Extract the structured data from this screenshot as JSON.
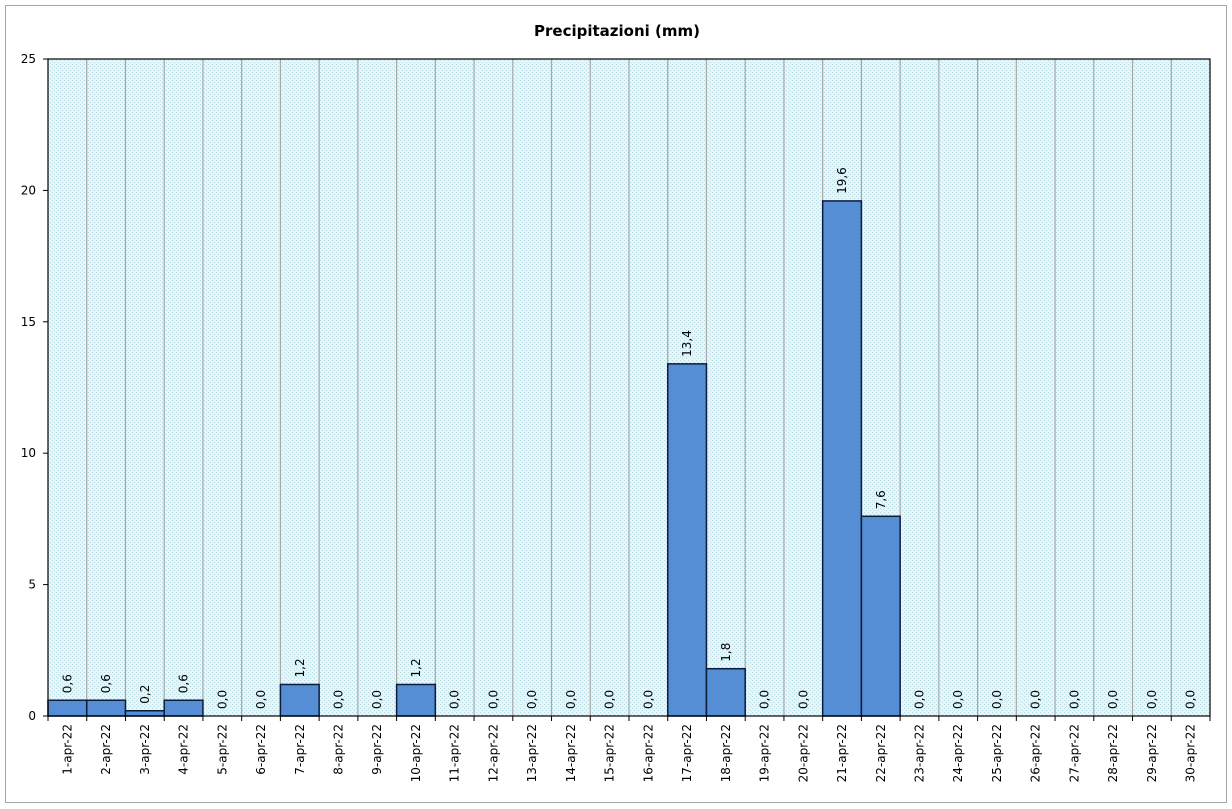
{
  "chart_data": {
    "type": "bar",
    "title": "Precipitazioni  (mm)",
    "xlabel": "",
    "ylabel": "",
    "ylim": [
      0,
      25
    ],
    "yticks": [
      "0",
      "5",
      "10",
      "15",
      "20",
      "25"
    ],
    "grid": "vertical",
    "categories": [
      "1-apr-22",
      "2-apr-22",
      "3-apr-22",
      "4-apr-22",
      "5-apr-22",
      "6-apr-22",
      "7-apr-22",
      "8-apr-22",
      "9-apr-22",
      "10-apr-22",
      "11-apr-22",
      "12-apr-22",
      "13-apr-22",
      "14-apr-22",
      "15-apr-22",
      "16-apr-22",
      "17-apr-22",
      "18-apr-22",
      "19-apr-22",
      "20-apr-22",
      "21-apr-22",
      "22-apr-22",
      "23-apr-22",
      "24-apr-22",
      "25-apr-22",
      "26-apr-22",
      "27-apr-22",
      "28-apr-22",
      "29-apr-22",
      "30-apr-22"
    ],
    "values": [
      0.6,
      0.6,
      0.2,
      0.6,
      0.0,
      0.0,
      1.2,
      0.0,
      0.0,
      1.2,
      0.0,
      0.0,
      0.0,
      0.0,
      0.0,
      0.0,
      13.4,
      1.8,
      0.0,
      0.0,
      19.6,
      7.6,
      0.0,
      0.0,
      0.0,
      0.0,
      0.0,
      0.0,
      0.0,
      0.0
    ],
    "data_labels": [
      "0,6",
      "0,6",
      "0,2",
      "0,6",
      "0,0",
      "0,0",
      "1,2",
      "0,0",
      "0,0",
      "1,2",
      "0,0",
      "0,0",
      "0,0",
      "0,0",
      "0,0",
      "0,0",
      "13,4",
      "1,8",
      "0,0",
      "0,0",
      "19,6",
      "7,6",
      "0,0",
      "0,0",
      "0,0",
      "0,0",
      "0,0",
      "0,0",
      "0,0",
      "0,0"
    ],
    "colors": {
      "bar_fill": "#558ed5",
      "bar_stroke": "#0d1b3a",
      "plot_bg": "#dbeef3",
      "grid": "#a6a6a6"
    }
  }
}
